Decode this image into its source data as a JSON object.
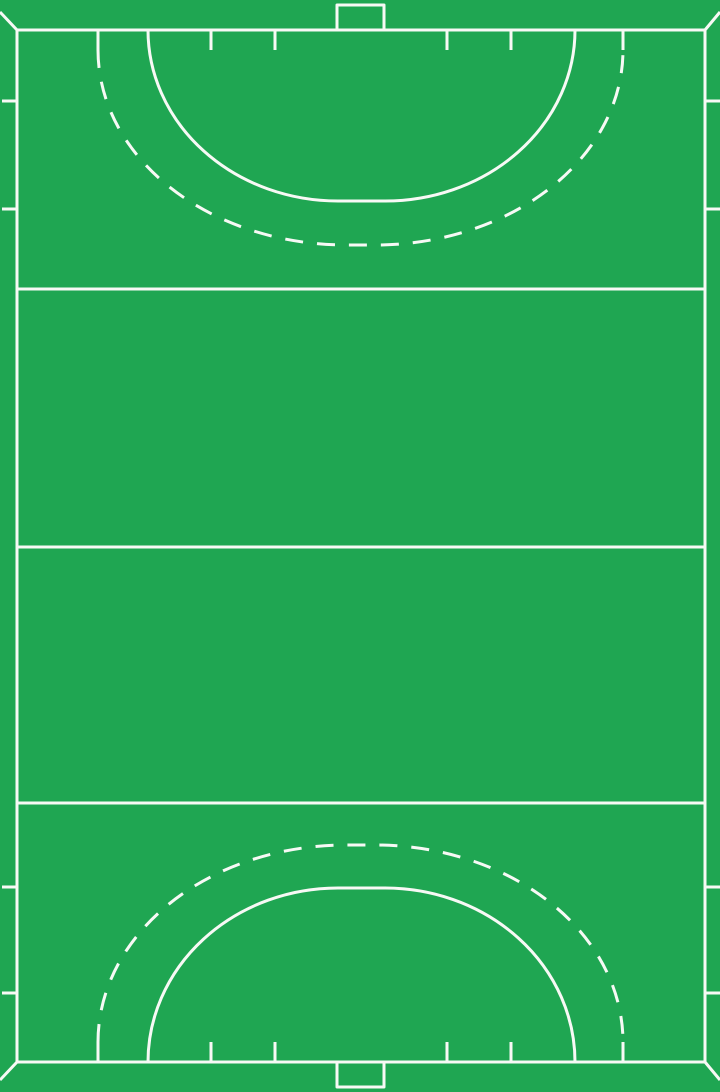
{
  "pitch": {
    "sport": "field-hockey",
    "orientation": "portrait",
    "field_color": "#1fa652",
    "line_color": "#f7f9f5"
  }
}
